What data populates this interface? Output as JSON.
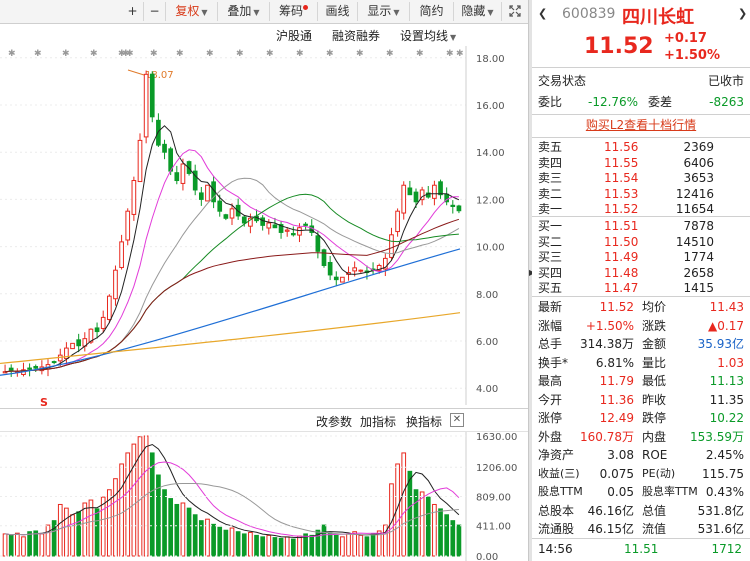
{
  "toolbar": {
    "plus": "+",
    "minus": "−",
    "fuquan": "复权",
    "diejia": "叠加",
    "chouma": "筹码",
    "huaxian": "画线",
    "xianshi": "显示",
    "jianyue": "简约",
    "yincang": "隐藏",
    "expand_icon": "expand-icon"
  },
  "subbar": {
    "hugutong": "沪股通",
    "rongzirongquan": "融资融券",
    "shezhi": "设置均线"
  },
  "price_axis": [
    "18.00",
    "16.00",
    "14.00",
    "12.00",
    "10.00",
    "8.00",
    "6.00",
    "4.00"
  ],
  "high_marker": "18.07",
  "s_marker": "S",
  "indicator_bar": {
    "gaicanshu": "改参数",
    "jiazhibiao": "加指标",
    "huanzhibiao": "换指标"
  },
  "volume_axis": [
    "1630.00",
    "1206.00",
    "809.00",
    "411.00",
    "0.00"
  ],
  "colors": {
    "up": "#e8281e",
    "down": "#0a9a28",
    "ma5": "#222222",
    "ma10": "#e23cd9",
    "ma20": "#999999",
    "ma30": "#168a23",
    "ma60": "#8a1a1a",
    "ma120": "#1f6fd6",
    "ma250": "#e8a72a"
  },
  "quote": {
    "code": "600839",
    "name": "四川长虹",
    "price": "11.52",
    "change": "+0.17",
    "change_pct": "+1.50%",
    "status_label": "交易状态",
    "status_value": "已收市",
    "weibi_label": "委比",
    "weibi_value": "-12.76%",
    "weicha_label": "委差",
    "weicha_value": "-8263",
    "l2_link": "购买L2查看十档行情",
    "asks": [
      {
        "label": "卖五",
        "price": "11.56",
        "vol": "2369"
      },
      {
        "label": "卖四",
        "price": "11.55",
        "vol": "6406"
      },
      {
        "label": "卖三",
        "price": "11.54",
        "vol": "3653"
      },
      {
        "label": "卖二",
        "price": "11.53",
        "vol": "12416"
      },
      {
        "label": "卖一",
        "price": "11.52",
        "vol": "11654"
      }
    ],
    "bids": [
      {
        "label": "买一",
        "price": "11.51",
        "vol": "7878"
      },
      {
        "label": "买二",
        "price": "11.50",
        "vol": "14510"
      },
      {
        "label": "买三",
        "price": "11.49",
        "vol": "1774"
      },
      {
        "label": "买四",
        "price": "11.48",
        "vol": "2658"
      },
      {
        "label": "买五",
        "price": "11.47",
        "vol": "1415"
      }
    ],
    "stats": [
      {
        "l1": "最新",
        "v1": "11.52",
        "c1": "red",
        "l2": "均价",
        "v2": "11.43",
        "c2": "red"
      },
      {
        "l1": "涨幅",
        "v1": "+1.50%",
        "c1": "red",
        "l2": "涨跌",
        "v2": "▲0.17",
        "c2": "red"
      },
      {
        "l1": "总手",
        "v1": "314.38万",
        "c1": "",
        "l2": "金额",
        "v2": "35.93亿",
        "c2": "blue"
      },
      {
        "l1": "换手*",
        "v1": "6.81%",
        "c1": "",
        "l2": "量比",
        "v2": "1.03",
        "c2": "red"
      },
      {
        "l1": "最高",
        "v1": "11.79",
        "c1": "red",
        "l2": "最低",
        "v2": "11.13",
        "c2": "green"
      },
      {
        "l1": "今开",
        "v1": "11.36",
        "c1": "red",
        "l2": "昨收",
        "v2": "11.35",
        "c2": ""
      },
      {
        "l1": "涨停",
        "v1": "12.49",
        "c1": "red",
        "l2": "跌停",
        "v2": "10.22",
        "c2": "green"
      },
      {
        "l1": "外盘",
        "v1": "160.78万",
        "c1": "red",
        "l2": "内盘",
        "v2": "153.59万",
        "c2": "green"
      },
      {
        "l1": "净资产",
        "v1": "3.08",
        "c1": "",
        "l2": "ROE",
        "v2": "2.45%",
        "c2": ""
      },
      {
        "l1": "收益(三)",
        "v1": "0.075",
        "c1": "",
        "l2": "PE(动)",
        "v2": "115.75",
        "c2": ""
      },
      {
        "l1": "股息TTM",
        "v1": "0.05",
        "c1": "",
        "l2": "股息率TTM",
        "v2": "0.43%",
        "c2": ""
      },
      {
        "l1": "总股本",
        "v1": "46.16亿",
        "c1": "",
        "l2": "总值",
        "v2": "531.8亿",
        "c2": ""
      },
      {
        "l1": "流通股",
        "v1": "46.15亿",
        "c1": "",
        "l2": "流值",
        "v2": "531.6亿",
        "c2": ""
      }
    ],
    "tick": {
      "time": "14:56",
      "price": "11.51",
      "vol": "1712"
    }
  },
  "chart_data": {
    "type": "candlestick",
    "price_ylim": [
      3.5,
      18.5
    ],
    "volume_ylim": [
      0,
      1630
    ],
    "closes": [
      4.7,
      4.75,
      4.72,
      4.78,
      4.8,
      4.85,
      4.9,
      5.0,
      5.1,
      5.4,
      5.7,
      5.9,
      5.8,
      6.1,
      6.5,
      6.4,
      7.0,
      7.9,
      9.0,
      10.2,
      11.5,
      12.8,
      14.5,
      17.3,
      15.5,
      14.3,
      14.0,
      13.2,
      12.8,
      13.5,
      13.1,
      12.4,
      12.0,
      12.6,
      11.9,
      11.5,
      11.2,
      11.6,
      11.3,
      11.0,
      11.2,
      11.1,
      10.9,
      11.0,
      10.8,
      10.6,
      10.7,
      10.5,
      10.8,
      10.9,
      10.6,
      9.8,
      9.2,
      8.8,
      8.6,
      8.7,
      8.9,
      9.1,
      9.0,
      8.9,
      9.0,
      9.2,
      9.5,
      10.5,
      11.5,
      12.6,
      12.2,
      11.9,
      12.4,
      12.1,
      12.6,
      12.2,
      11.9,
      11.7,
      11.52
    ],
    "volumes": [
      300,
      280,
      310,
      260,
      330,
      340,
      300,
      420,
      480,
      700,
      650,
      560,
      600,
      720,
      760,
      640,
      800,
      900,
      1050,
      1250,
      1400,
      1520,
      1620,
      1630,
      1400,
      1100,
      900,
      780,
      700,
      720,
      650,
      560,
      480,
      500,
      430,
      390,
      350,
      380,
      330,
      300,
      320,
      280,
      260,
      280,
      250,
      240,
      260,
      230,
      270,
      300,
      280,
      350,
      420,
      310,
      280,
      260,
      300,
      330,
      280,
      260,
      300,
      340,
      420,
      980,
      1250,
      1400,
      1150,
      900,
      870,
      800,
      700,
      640,
      560,
      480,
      420
    ]
  }
}
